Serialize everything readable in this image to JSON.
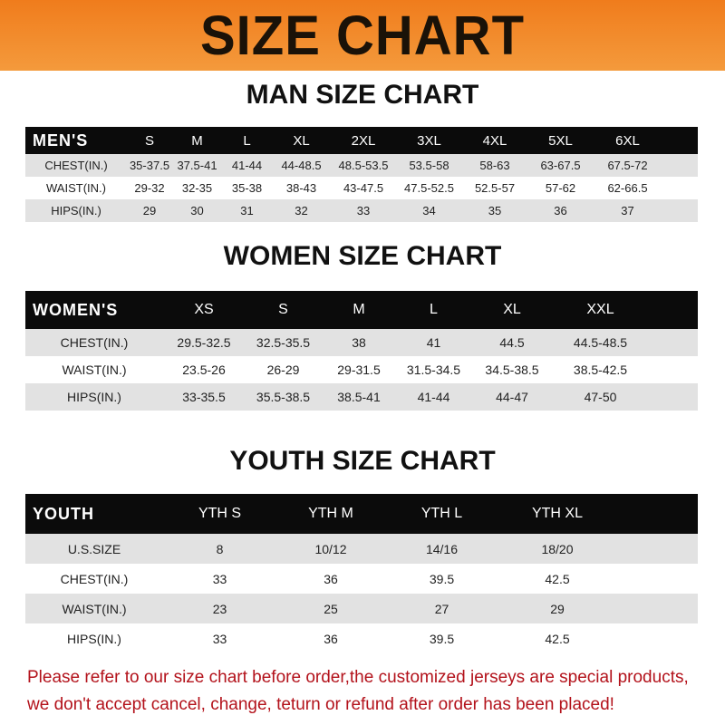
{
  "banner": "SIZE CHART",
  "men": {
    "title": "MAN SIZE CHART",
    "label": "MEN'S",
    "sizes": [
      "S",
      "M",
      "L",
      "XL",
      "2XL",
      "3XL",
      "4XL",
      "5XL",
      "6XL"
    ],
    "rows": [
      {
        "label": "CHEST(IN.)",
        "values": [
          "35-37.5",
          "37.5-41",
          "41-44",
          "44-48.5",
          "48.5-53.5",
          "53.5-58",
          "58-63",
          "63-67.5",
          "67.5-72"
        ]
      },
      {
        "label": "WAIST(IN.)",
        "values": [
          "29-32",
          "32-35",
          "35-38",
          "38-43",
          "43-47.5",
          "47.5-52.5",
          "52.5-57",
          "57-62",
          "62-66.5"
        ]
      },
      {
        "label": "HIPS(IN.)",
        "values": [
          "29",
          "30",
          "31",
          "32",
          "33",
          "34",
          "35",
          "36",
          "37"
        ]
      }
    ]
  },
  "women": {
    "title": "WOMEN SIZE CHART",
    "label": "WOMEN'S",
    "sizes": [
      "XS",
      "S",
      "M",
      "L",
      "XL",
      "XXL"
    ],
    "rows": [
      {
        "label": "CHEST(IN.)",
        "values": [
          "29.5-32.5",
          "32.5-35.5",
          "38",
          "41",
          "44.5",
          "44.5-48.5"
        ]
      },
      {
        "label": "WAIST(IN.)",
        "values": [
          "23.5-26",
          "26-29",
          "29-31.5",
          "31.5-34.5",
          "34.5-38.5",
          "38.5-42.5"
        ]
      },
      {
        "label": "HIPS(IN.)",
        "values": [
          "33-35.5",
          "35.5-38.5",
          "38.5-41",
          "41-44",
          "44-47",
          "47-50"
        ]
      }
    ]
  },
  "youth": {
    "title": "YOUTH SIZE CHART",
    "label": "YOUTH",
    "sizes": [
      "YTH S",
      "YTH M",
      "YTH L",
      "YTH XL"
    ],
    "rows": [
      {
        "label": "U.S.SIZE",
        "values": [
          "8",
          "10/12",
          "14/16",
          "18/20"
        ]
      },
      {
        "label": "CHEST(IN.)",
        "values": [
          "33",
          "36",
          "39.5",
          "42.5"
        ]
      },
      {
        "label": "WAIST(IN.)",
        "values": [
          "23",
          "25",
          "27",
          "29"
        ]
      },
      {
        "label": "HIPS(IN.)",
        "values": [
          "33",
          "36",
          "39.5",
          "42.5"
        ]
      }
    ]
  },
  "notice": [
    "Please refer to our size chart before order,the customized jerseys are special products,",
    "we don't accept cancel, change, teturn or refund after order has been placed!"
  ],
  "colors": {
    "banner": "#f08a2c",
    "header": "#0b0b0b",
    "row_alt": "#e2e2e2",
    "notice": "#b3121b"
  }
}
